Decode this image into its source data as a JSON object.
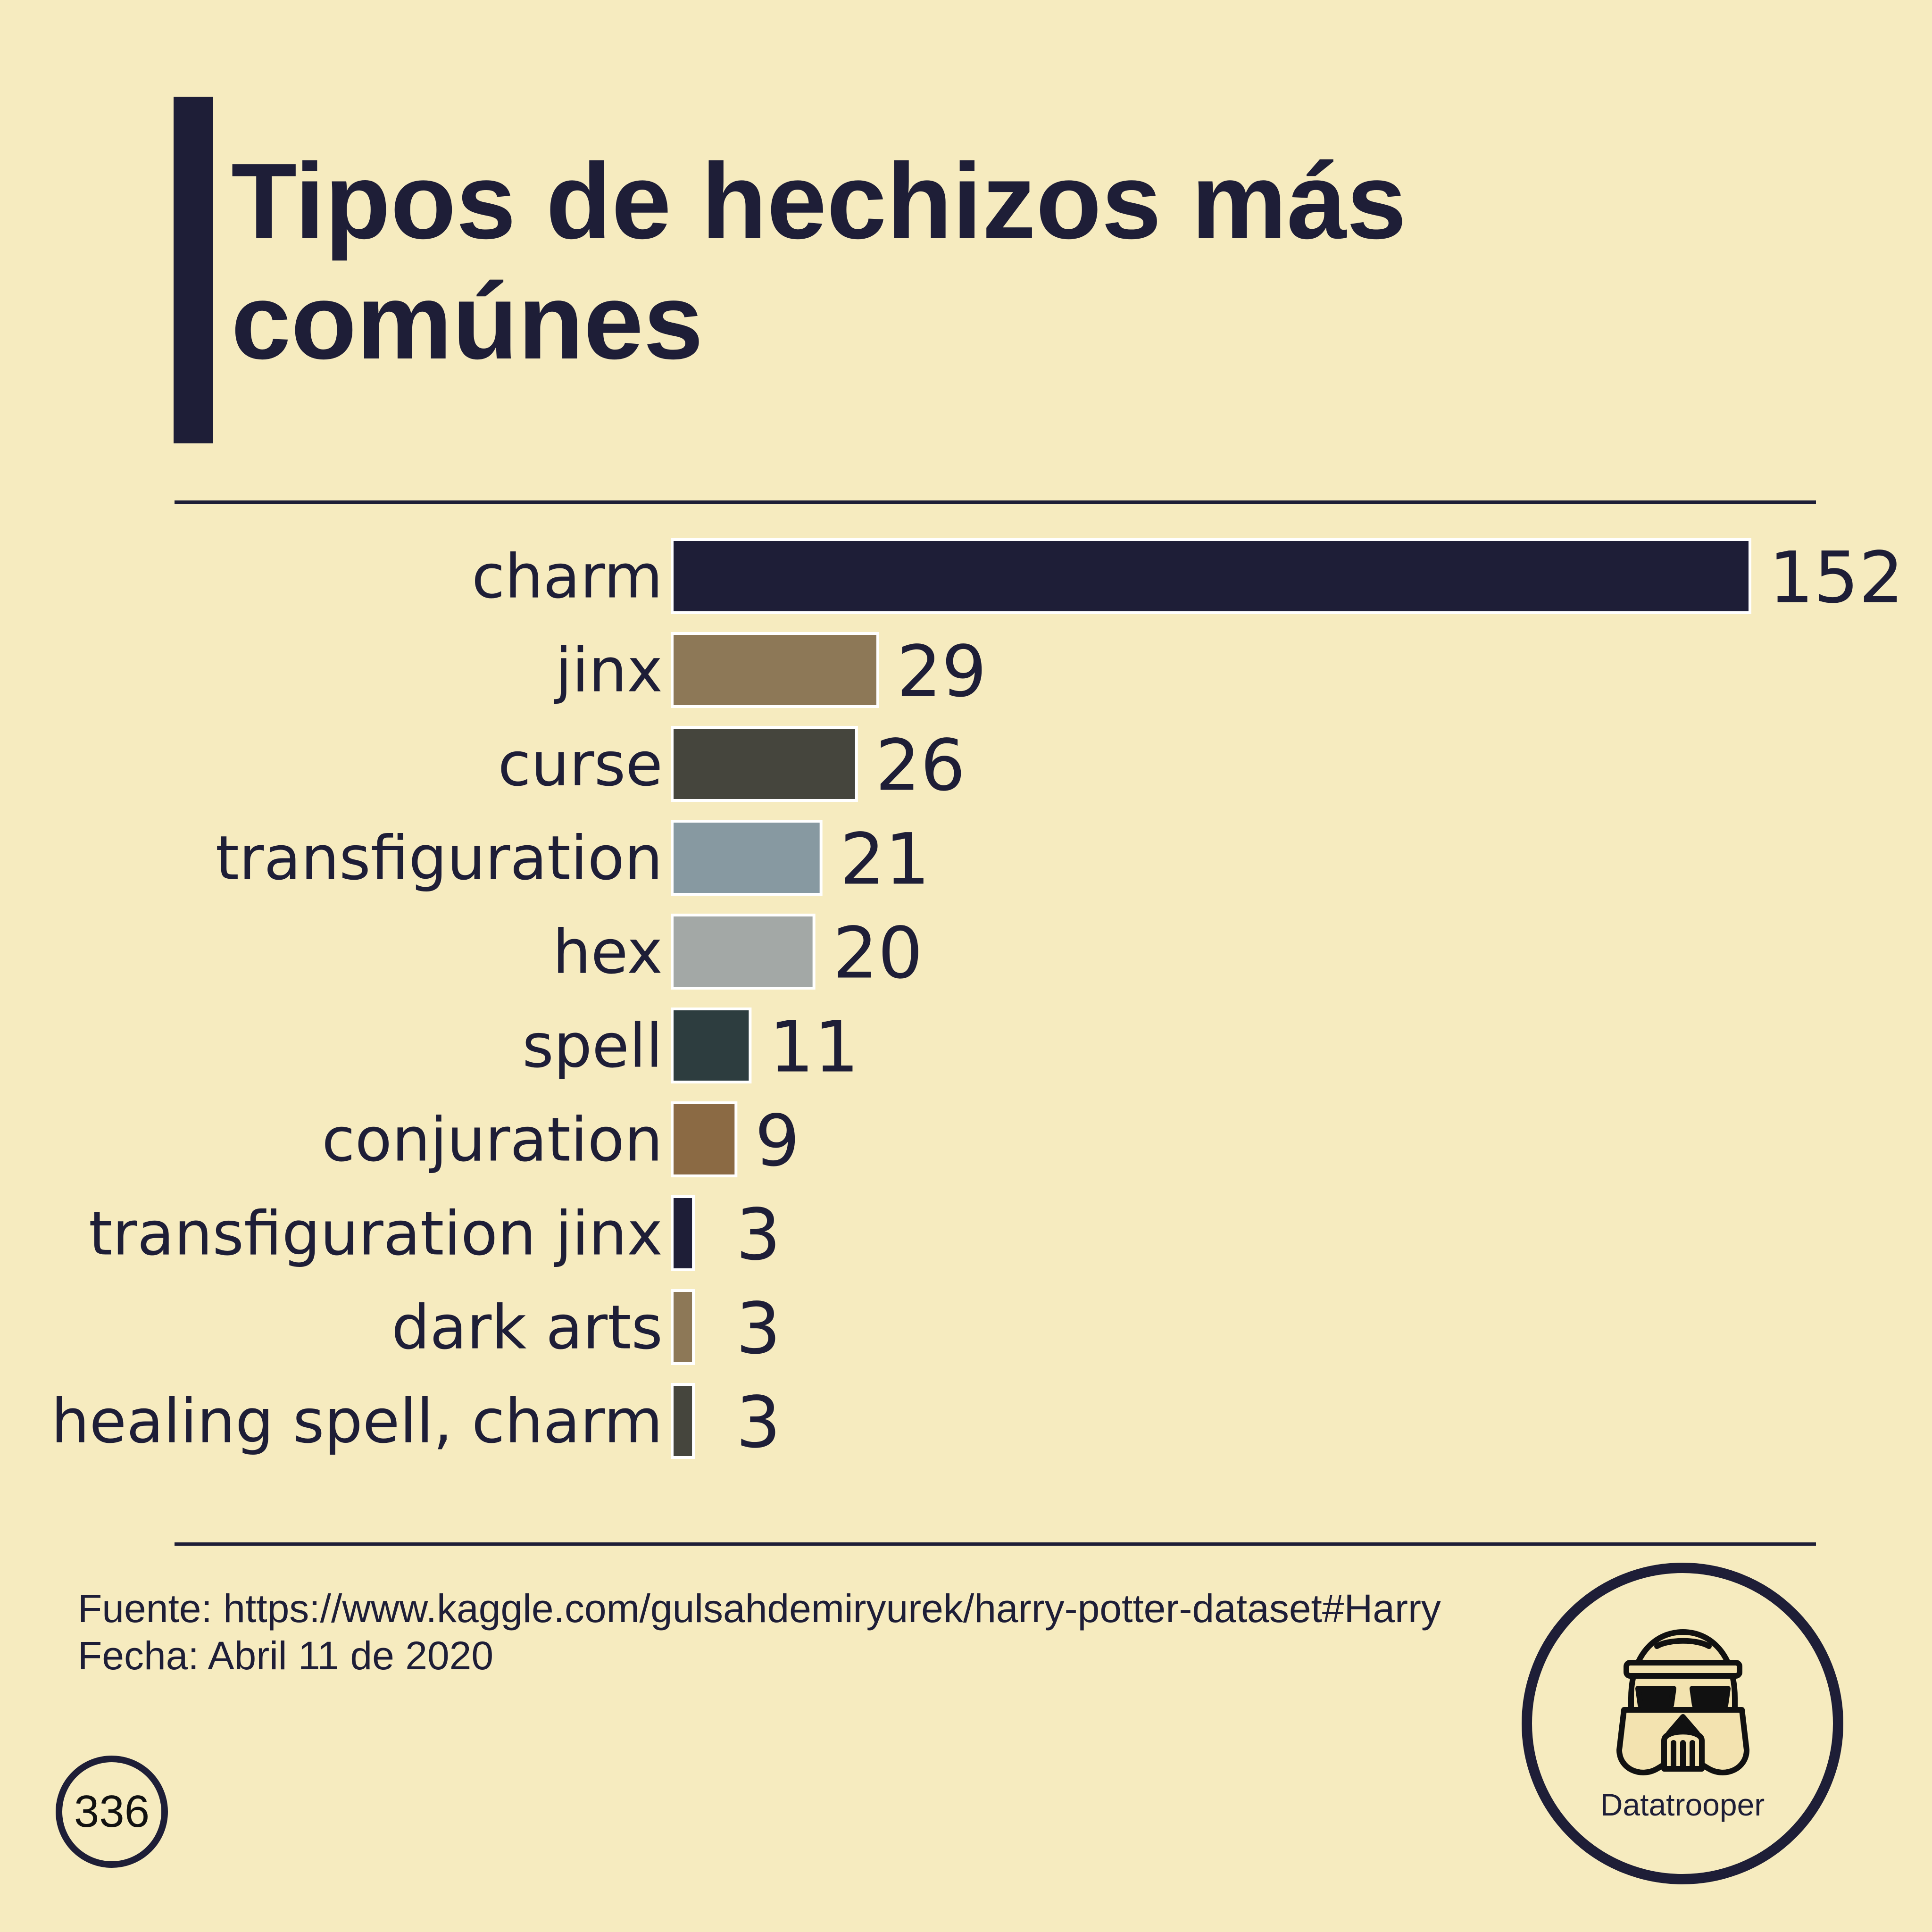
{
  "header": {
    "title": "Tipos de hechizos más\ncomúnes"
  },
  "chart_data": {
    "type": "bar",
    "orientation": "horizontal",
    "categories": [
      "charm",
      "jinx",
      "curse",
      "transfiguration",
      "hex",
      "spell",
      "conjuration",
      "transfiguration jinx",
      "dark arts",
      "healing spell, charm"
    ],
    "values": [
      152,
      29,
      26,
      21,
      20,
      11,
      9,
      3,
      3,
      3
    ],
    "colors": [
      "#1e1e37",
      "#8d7857",
      "#45453d",
      "#8799a1",
      "#a3a8a6",
      "#2d3d3f",
      "#8b6a44",
      "#1e1e37",
      "#8d7857",
      "#45453d"
    ],
    "title": "Tipos de hechizos más comúnes",
    "xlabel": "",
    "ylabel": "",
    "grid": false,
    "legend": "none"
  },
  "footer": {
    "source": "Fuente: https://www.kaggle.com/gulsahdemiryurek/harry-potter-dataset#Harry",
    "date": "Fecha: Abril 11 de 2020",
    "page_number": "336",
    "brand": "Datatrooper"
  },
  "icons": {
    "logo": "stormtrooper-helmet-icon"
  }
}
